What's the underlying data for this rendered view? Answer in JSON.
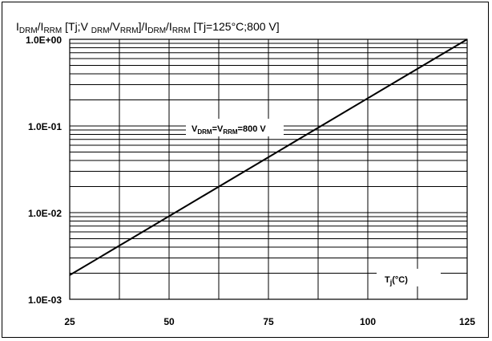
{
  "chart_data": {
    "type": "line",
    "title_parts": {
      "t1": "I",
      "t1s": "DRM",
      "t2": "/I",
      "t2s": "RRM",
      "t3": " [Tj;V ",
      "t3s": "DRM",
      "t4": "/V",
      "t4s": "RRM",
      "t5": "]/I",
      "t5s": "DRM",
      "t6": "/I",
      "t6s": "RRM",
      "t7": " [Tj=125°C;800 V]"
    },
    "x": [
      25,
      125
    ],
    "series": [
      {
        "name": "V DRM = V RRM = 800 V",
        "values": [
          0.0019,
          1.0
        ]
      }
    ],
    "xlim": [
      25,
      125
    ],
    "ylim": [
      0.001,
      1.0
    ],
    "yscale": "log",
    "xticks": [
      "25",
      "50",
      "75",
      "100",
      "125"
    ],
    "xtick_values": [
      25,
      50,
      75,
      100,
      125
    ],
    "yticks": [
      "1.0E-03",
      "1.0E-02",
      "1.0E-01",
      "1.0E+00"
    ],
    "ytick_values": [
      0.001,
      0.01,
      0.1,
      1.0
    ],
    "xlabel": {
      "main": "T",
      "sub": "j",
      "rest": "(°C)"
    },
    "annotation": {
      "v1": "V",
      "v1s": "DRM",
      "v2": "=V",
      "v2s": "RRM",
      "v3": "=800 V"
    },
    "grid": true,
    "colors": {
      "line": "#000000",
      "grid": "#000000",
      "background": "#ffffff"
    }
  }
}
